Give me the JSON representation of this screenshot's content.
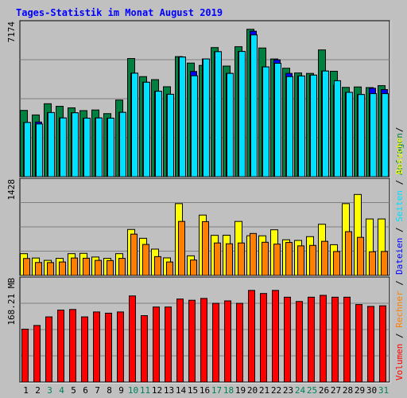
{
  "chart_data": {
    "type": "bar",
    "title": "Tages-Statistik im Monat August 2019",
    "categories": [
      "1",
      "2",
      "3",
      "4",
      "5",
      "6",
      "7",
      "8",
      "9",
      "10",
      "11",
      "12",
      "13",
      "14",
      "15",
      "16",
      "17",
      "18",
      "19",
      "20",
      "21",
      "22",
      "23",
      "24",
      "25",
      "26",
      "27",
      "28",
      "29",
      "30",
      "31"
    ],
    "weekend_days": [
      "3",
      "4",
      "10",
      "11",
      "17",
      "18",
      "24",
      "25",
      "31"
    ],
    "grid": true,
    "legend": "right",
    "panels": [
      {
        "id": "top",
        "axis_label": "7174",
        "ylim": [
          0,
          7174
        ],
        "series": [
          {
            "name": "Anfragen",
            "color": "#008040",
            "values": [
              3080,
              2870,
              3390,
              3270,
              3200,
              3070,
              3100,
              2930,
              3560,
              5490,
              4650,
              4510,
              4180,
              5580,
              5280,
              5170,
              6000,
              5140,
              6040,
              6850,
              5980,
              5470,
              5040,
              4820,
              4800,
              5890,
              4900,
              4150,
              4170,
              4140,
              4230
            ]
          },
          {
            "name": "Dateien",
            "color": "#0000ff",
            "values": [
              2520,
              2540,
              2980,
              2730,
              2970,
              2720,
              2730,
              2720,
              2990,
              4810,
              4390,
              3970,
              3830,
              5560,
              4890,
              5470,
              5810,
              4800,
              5820,
              6760,
              5100,
              5430,
              4800,
              4680,
              4720,
              4910,
              4250,
              3920,
              3820,
              4110,
              4050
            ]
          },
          {
            "name": "Seiten",
            "color": "#00e0ff",
            "values": [
              2520,
              2450,
              2980,
              2730,
              2970,
              2720,
              2730,
              2720,
              2990,
              4810,
              4390,
              3970,
              3830,
              5560,
              4690,
              5470,
              5810,
              4800,
              5820,
              6590,
              5100,
              5270,
              4650,
              4680,
              4720,
              4910,
              4460,
              3920,
              3820,
              3860,
              3860
            ]
          }
        ]
      },
      {
        "id": "middle",
        "axis_label": "1428",
        "ylim": [
          0,
          1428
        ],
        "series": [
          {
            "name": "Besuche",
            "color": "#ffff00",
            "values": [
              325,
              260,
              225,
              255,
              325,
              330,
              275,
              255,
              325,
              687,
              555,
              393,
              262,
              1073,
              293,
              902,
              599,
              601,
              807,
              593,
              592,
              682,
              533,
              523,
              580,
              765,
              459,
              1073,
              1210,
              844,
              844
            ]
          },
          {
            "name": "Rechner",
            "color": "#ff8000",
            "values": [
              253,
              193,
              192,
              201,
              260,
              257,
              225,
              222,
              255,
              617,
              463,
              281,
              201,
              807,
              230,
              804,
              485,
              473,
              485,
              627,
              496,
              468,
              493,
              442,
              449,
              510,
              357,
              654,
              569,
              354,
              358
            ]
          }
        ]
      },
      {
        "id": "bottom",
        "axis_label": "168.21 MB",
        "ylim": [
          0,
          168.21
        ],
        "series": [
          {
            "name": "Volumen",
            "color": "#ff0000",
            "values": [
              86,
              92,
              106,
              117,
              118,
              106,
              114,
              112,
              114,
              140,
              108,
              122,
              122,
              135,
              133,
              136,
              128,
              132,
              128,
              149,
              144,
              149,
              138,
              131,
              138,
              141,
              138,
              138,
              126,
              123,
              124
            ]
          }
        ]
      }
    ]
  },
  "legend_text": {
    "top": [
      {
        "text": "Anfragen",
        "color": "#008040"
      }
    ],
    "middle": [
      {
        "text": "Dateien",
        "color": "#0000ff"
      },
      {
        "text": " / ",
        "color": "#000000"
      },
      {
        "text": "Seiten",
        "color": "#00e0ff"
      },
      {
        "text": " / ",
        "color": "#000000"
      },
      {
        "text": "Besuche",
        "color": "#ffff00"
      },
      {
        "text": " / ",
        "color": "#000000"
      }
    ],
    "bottom": [
      {
        "text": "Volumen",
        "color": "#ff0000"
      },
      {
        "text": " / ",
        "color": "#000000"
      },
      {
        "text": "Rechner",
        "color": "#ff8000"
      },
      {
        "text": " / ",
        "color": "#000000"
      }
    ]
  },
  "colors": {
    "background": "#c0c0c0",
    "title": "#0000ff",
    "weekday_label": "#000000",
    "weekend_label": "#00805c",
    "grid": "#808080"
  }
}
